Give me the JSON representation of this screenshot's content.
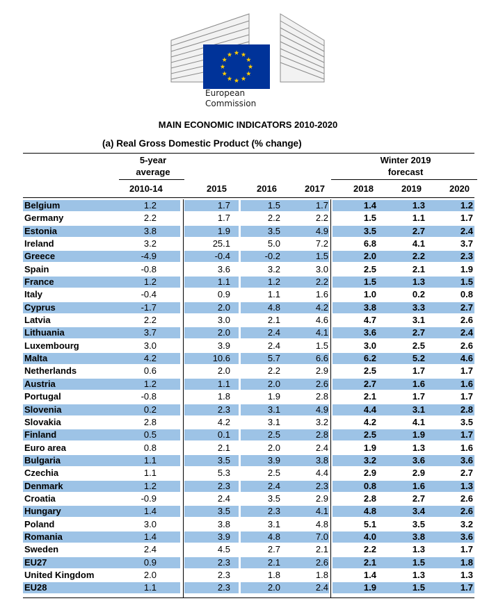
{
  "header": {
    "org_line1": "European",
    "org_line2": "Commission",
    "doc_title": "MAIN ECONOMIC INDICATORS 2010-2020",
    "table_title": "(a) Real Gross Domestic Product (% change)"
  },
  "columns": {
    "avg_line1": "5-year",
    "avg_line2": "average",
    "forecast_line1": "Winter 2019",
    "forecast_line2": "forecast",
    "years": [
      "2010-14",
      "2015",
      "2016",
      "2017",
      "2018",
      "2019",
      "2020"
    ]
  },
  "rows": [
    {
      "name": "Belgium",
      "v": [
        "1.2",
        "1.7",
        "1.5",
        "1.7",
        "1.4",
        "1.3",
        "1.2"
      ]
    },
    {
      "name": "Germany",
      "v": [
        "2.2",
        "1.7",
        "2.2",
        "2.2",
        "1.5",
        "1.1",
        "1.7"
      ]
    },
    {
      "name": "Estonia",
      "v": [
        "3.8",
        "1.9",
        "3.5",
        "4.9",
        "3.5",
        "2.7",
        "2.4"
      ]
    },
    {
      "name": "Ireland",
      "v": [
        "3.2",
        "25.1",
        "5.0",
        "7.2",
        "6.8",
        "4.1",
        "3.7"
      ]
    },
    {
      "name": "Greece",
      "v": [
        "-4.9",
        "-0.4",
        "-0.2",
        "1.5",
        "2.0",
        "2.2",
        "2.3"
      ]
    },
    {
      "name": "Spain",
      "v": [
        "-0.8",
        "3.6",
        "3.2",
        "3.0",
        "2.5",
        "2.1",
        "1.9"
      ]
    },
    {
      "name": "France",
      "v": [
        "1.2",
        "1.1",
        "1.2",
        "2.2",
        "1.5",
        "1.3",
        "1.5"
      ]
    },
    {
      "name": "Italy",
      "v": [
        "-0.4",
        "0.9",
        "1.1",
        "1.6",
        "1.0",
        "0.2",
        "0.8"
      ]
    },
    {
      "name": "Cyprus",
      "v": [
        "-1.7",
        "2.0",
        "4.8",
        "4.2",
        "3.8",
        "3.3",
        "2.7"
      ]
    },
    {
      "name": "Latvia",
      "v": [
        "2.2",
        "3.0",
        "2.1",
        "4.6",
        "4.7",
        "3.1",
        "2.6"
      ]
    },
    {
      "name": "Lithuania",
      "v": [
        "3.7",
        "2.0",
        "2.4",
        "4.1",
        "3.6",
        "2.7",
        "2.4"
      ]
    },
    {
      "name": "Luxembourg",
      "v": [
        "3.0",
        "3.9",
        "2.4",
        "1.5",
        "3.0",
        "2.5",
        "2.6"
      ]
    },
    {
      "name": "Malta",
      "v": [
        "4.2",
        "10.6",
        "5.7",
        "6.6",
        "6.2",
        "5.2",
        "4.6"
      ]
    },
    {
      "name": "Netherlands",
      "v": [
        "0.6",
        "2.0",
        "2.2",
        "2.9",
        "2.5",
        "1.7",
        "1.7"
      ]
    },
    {
      "name": "Austria",
      "v": [
        "1.2",
        "1.1",
        "2.0",
        "2.6",
        "2.7",
        "1.6",
        "1.6"
      ]
    },
    {
      "name": "Portugal",
      "v": [
        "-0.8",
        "1.8",
        "1.9",
        "2.8",
        "2.1",
        "1.7",
        "1.7"
      ]
    },
    {
      "name": "Slovenia",
      "v": [
        "0.2",
        "2.3",
        "3.1",
        "4.9",
        "4.4",
        "3.1",
        "2.8"
      ]
    },
    {
      "name": "Slovakia",
      "v": [
        "2.8",
        "4.2",
        "3.1",
        "3.2",
        "4.2",
        "4.1",
        "3.5"
      ]
    },
    {
      "name": "Finland",
      "v": [
        "0.5",
        "0.1",
        "2.5",
        "2.8",
        "2.5",
        "1.9",
        "1.7"
      ]
    },
    {
      "name": "Euro area",
      "v": [
        "0.8",
        "2.1",
        "2.0",
        "2.4",
        "1.9",
        "1.3",
        "1.6"
      ]
    },
    {
      "name": "Bulgaria",
      "v": [
        "1.1",
        "3.5",
        "3.9",
        "3.8",
        "3.2",
        "3.6",
        "3.6"
      ]
    },
    {
      "name": "Czechia",
      "v": [
        "1.1",
        "5.3",
        "2.5",
        "4.4",
        "2.9",
        "2.9",
        "2.7"
      ]
    },
    {
      "name": "Denmark",
      "v": [
        "1.2",
        "2.3",
        "2.4",
        "2.3",
        "0.8",
        "1.6",
        "1.3"
      ]
    },
    {
      "name": "Croatia",
      "v": [
        "-0.9",
        "2.4",
        "3.5",
        "2.9",
        "2.8",
        "2.7",
        "2.6"
      ]
    },
    {
      "name": "Hungary",
      "v": [
        "1.4",
        "3.5",
        "2.3",
        "4.1",
        "4.8",
        "3.4",
        "2.6"
      ]
    },
    {
      "name": "Poland",
      "v": [
        "3.0",
        "3.8",
        "3.1",
        "4.8",
        "5.1",
        "3.5",
        "3.2"
      ]
    },
    {
      "name": "Romania",
      "v": [
        "1.4",
        "3.9",
        "4.8",
        "7.0",
        "4.0",
        "3.8",
        "3.6"
      ]
    },
    {
      "name": "Sweden",
      "v": [
        "2.4",
        "4.5",
        "2.7",
        "2.1",
        "2.2",
        "1.3",
        "1.7"
      ]
    },
    {
      "name": "EU27",
      "v": [
        "0.9",
        "2.3",
        "2.1",
        "2.6",
        "2.1",
        "1.5",
        "1.8"
      ]
    },
    {
      "name": "United Kingdom",
      "v": [
        "2.0",
        "2.3",
        "1.8",
        "1.8",
        "1.4",
        "1.3",
        "1.3"
      ]
    },
    {
      "name": "EU28",
      "v": [
        "1.1",
        "2.3",
        "2.0",
        "2.4",
        "1.9",
        "1.5",
        "1.7"
      ]
    }
  ],
  "colors": {
    "shade": "#9dc3e6",
    "flag_blue": "#003399",
    "star_yellow": "#ffcc00"
  }
}
